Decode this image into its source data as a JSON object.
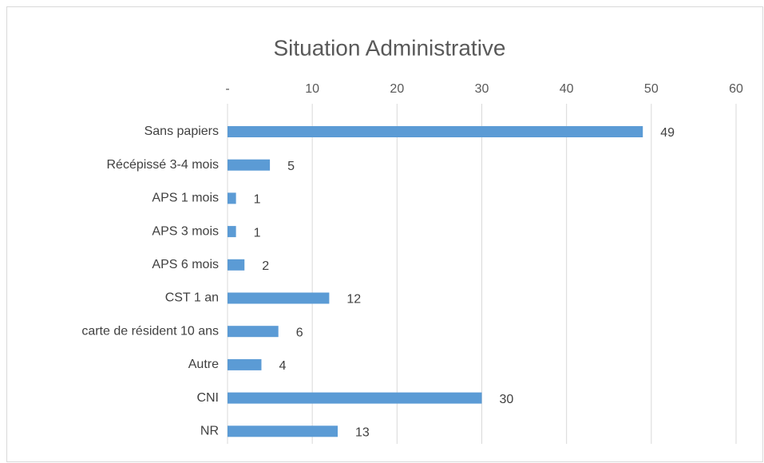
{
  "chart_data": {
    "type": "hbar",
    "title": "Situation Administrative",
    "categories": [
      "Sans papiers",
      "Récépissé 3-4 mois",
      "APS 1 mois",
      "APS 3 mois",
      "APS 6 mois",
      "CST 1 an",
      "carte de résident 10 ans",
      "Autre",
      "CNI",
      "NR"
    ],
    "values": [
      49,
      5,
      1,
      1,
      2,
      12,
      6,
      4,
      30,
      13
    ],
    "color": "#5b9bd5",
    "xlim": [
      0,
      60
    ],
    "xticks": [
      {
        "value": 0,
        "label": "-"
      },
      10,
      20,
      30,
      40,
      50,
      60
    ],
    "grid": true
  }
}
